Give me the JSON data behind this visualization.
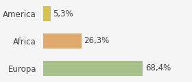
{
  "categories": [
    "America",
    "Africa",
    "Europa"
  ],
  "values": [
    5.3,
    26.3,
    68.4
  ],
  "labels": [
    "5,3%",
    "26,3%",
    "68,4%"
  ],
  "bar_colors": [
    "#d4c44e",
    "#e0a96d",
    "#a8c08a"
  ],
  "background_color": "#f5f5f5",
  "xlim": [
    0,
    100
  ],
  "label_fontsize": 8.5,
  "tick_fontsize": 8.5,
  "bar_height": 0.55
}
